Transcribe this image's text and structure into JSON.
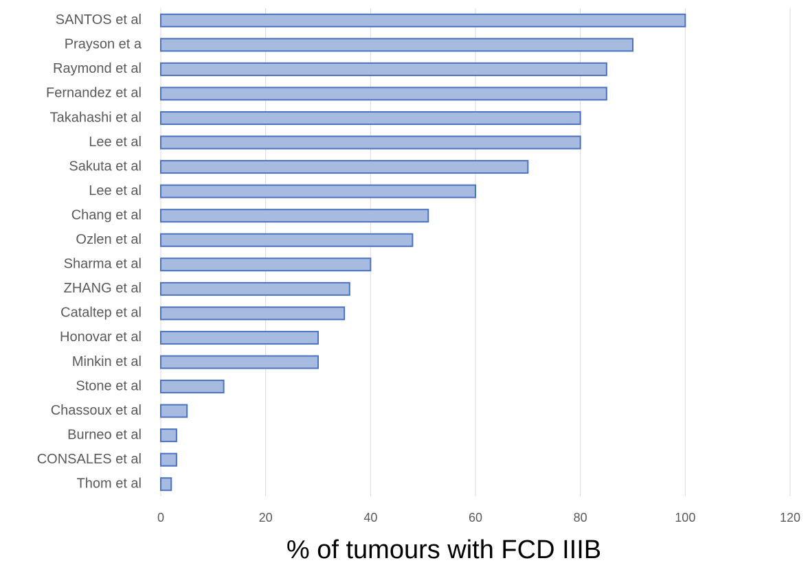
{
  "chart_data": {
    "type": "bar",
    "orientation": "horizontal",
    "categories": [
      "SANTOS et al",
      "Prayson et a",
      "Raymond et al",
      "Fernandez et al",
      "Takahashi et al",
      "Lee et al",
      "Sakuta et al",
      "Lee et al",
      "Chang et al",
      "Ozlen et al",
      "Sharma et al",
      "ZHANG et al",
      "Cataltep et al",
      "Honovar et al",
      "Minkin et al",
      "Stone et al",
      "Chassoux et al",
      "Burneo et al",
      "CONSALES et al",
      "Thom et al"
    ],
    "values": [
      100,
      90,
      85,
      85,
      80,
      80,
      70,
      60,
      51,
      48,
      40,
      36,
      35,
      30,
      30,
      12,
      5,
      3,
      3,
      2
    ],
    "color": "#a7badf",
    "edgecolor": "#4a72bf",
    "xlabel": "% of tumours with FCD IIIB",
    "xlim": [
      0,
      120
    ],
    "xticks": [
      0,
      20,
      40,
      60,
      80,
      100,
      120
    ],
    "grid": true
  }
}
